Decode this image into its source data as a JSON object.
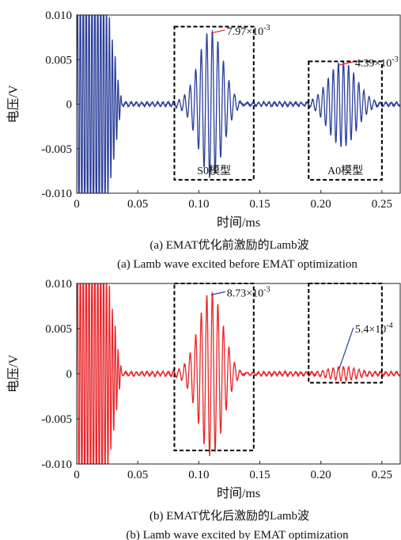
{
  "chart_data": [
    {
      "type": "line",
      "title": "",
      "xlabel": "时间/ms",
      "ylabel": "电压/V",
      "xlim": [
        0,
        0.265
      ],
      "ylim": [
        -0.01,
        0.01
      ],
      "xticks": [
        "0",
        "0.05",
        "0.10",
        "0.15",
        "0.20",
        "0.25"
      ],
      "yticks": [
        "0.010",
        "0.005",
        "0",
        "-0.005",
        "-0.010"
      ],
      "color": "#2b3f9a",
      "series": [
        {
          "packets": [
            {
              "region": "initial excitation",
              "x_range": [
                0,
                0.035
              ],
              "peak_abs": 0.01
            },
            {
              "region": "S0",
              "x_range": [
                0.085,
                0.135
              ],
              "peak": 0.00797
            },
            {
              "region": "A0",
              "x_range": [
                0.19,
                0.245
              ],
              "peak": 0.00439
            }
          ]
        }
      ],
      "boxes": [
        {
          "label": "S0模型",
          "x_range": [
            0.08,
            0.145
          ],
          "y_range": [
            -0.0085,
            0.0087
          ]
        },
        {
          "label": "A0模型",
          "x_range": [
            0.19,
            0.25
          ],
          "y_range": [
            -0.0085,
            0.0048
          ]
        }
      ],
      "annotations": [
        {
          "text": "7.97×10⁻³",
          "x": 0.11,
          "y": 0.00797
        },
        {
          "text": "4.39×10⁻³",
          "x": 0.215,
          "y": 0.00439
        }
      ],
      "caption_zh": "(a) EMAT优化前激励的Lamb波",
      "caption_en": "(a) Lamb wave excited before EMAT optimization"
    },
    {
      "type": "line",
      "title": "",
      "xlabel": "时间/ms",
      "ylabel": "电压/V",
      "xlim": [
        0,
        0.265
      ],
      "ylim": [
        -0.01,
        0.01
      ],
      "xticks": [
        "0",
        "0.05",
        "0.10",
        "0.15",
        "0.20",
        "0.25"
      ],
      "yticks": [
        "0.010",
        "0.005",
        "0",
        "-0.005",
        "-0.010"
      ],
      "color": "#e8262a",
      "series": [
        {
          "packets": [
            {
              "region": "initial excitation",
              "x_range": [
                0,
                0.035
              ],
              "peak_abs": 0.01
            },
            {
              "region": "S0",
              "x_range": [
                0.085,
                0.135
              ],
              "peak": 0.00873
            },
            {
              "region": "A0",
              "x_range": [
                0.19,
                0.245
              ],
              "peak": 0.00054
            }
          ]
        }
      ],
      "boxes": [
        {
          "label": "",
          "x_range": [
            0.08,
            0.145
          ],
          "y_range": [
            -0.0085,
            0.01
          ]
        },
        {
          "label": "",
          "x_range": [
            0.19,
            0.25
          ],
          "y_range": [
            -0.001,
            0.01
          ]
        }
      ],
      "annotations": [
        {
          "text": "8.73×10⁻³",
          "x": 0.11,
          "y": 0.00873
        },
        {
          "text": "5.4×10⁻⁴",
          "x": 0.215,
          "y": 0.00054
        }
      ],
      "caption_zh": "(b) EMAT优化后激励的Lamb波",
      "caption_en": "(b) Lamb wave excited by EMAT optimization"
    }
  ]
}
